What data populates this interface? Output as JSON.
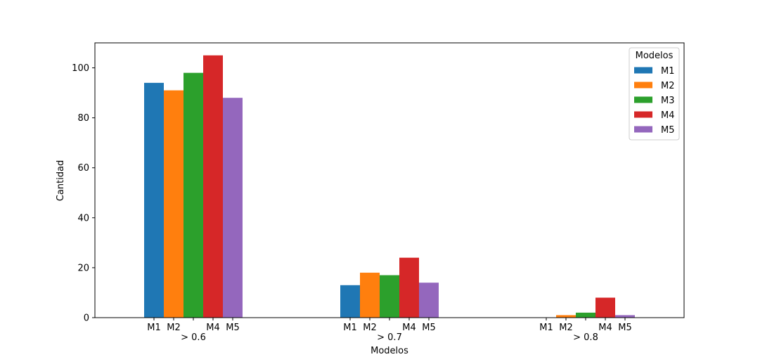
{
  "chart_data": {
    "type": "bar",
    "xlabel": "Modelos",
    "ylabel": "Cantidad",
    "ylim": [
      0,
      110
    ],
    "yticks": [
      0,
      20,
      40,
      60,
      80,
      100
    ],
    "grid": false,
    "groups": [
      {
        "label": "> 0.6",
        "bar_labels": [
          "M1",
          "M2",
          "",
          "M4",
          "M5"
        ]
      },
      {
        "label": "> 0.7",
        "bar_labels": [
          "M1",
          "M2",
          "",
          "M4",
          "M5"
        ]
      },
      {
        "label": "> 0.8",
        "bar_labels": [
          "M1",
          "M2",
          "",
          "M4",
          "M5"
        ]
      }
    ],
    "series": [
      {
        "name": "M1",
        "color": "#1f77b4",
        "values": [
          94,
          13,
          0
        ]
      },
      {
        "name": "M2",
        "color": "#ff7f0e",
        "values": [
          91,
          18,
          1
        ]
      },
      {
        "name": "M3",
        "color": "#2ca02c",
        "values": [
          98,
          17,
          2
        ]
      },
      {
        "name": "M4",
        "color": "#d62728",
        "values": [
          105,
          24,
          8
        ]
      },
      {
        "name": "M5",
        "color": "#9467bd",
        "values": [
          88,
          14,
          1
        ]
      }
    ],
    "legend": {
      "title": "Modelos",
      "placement": "top-right"
    }
  }
}
